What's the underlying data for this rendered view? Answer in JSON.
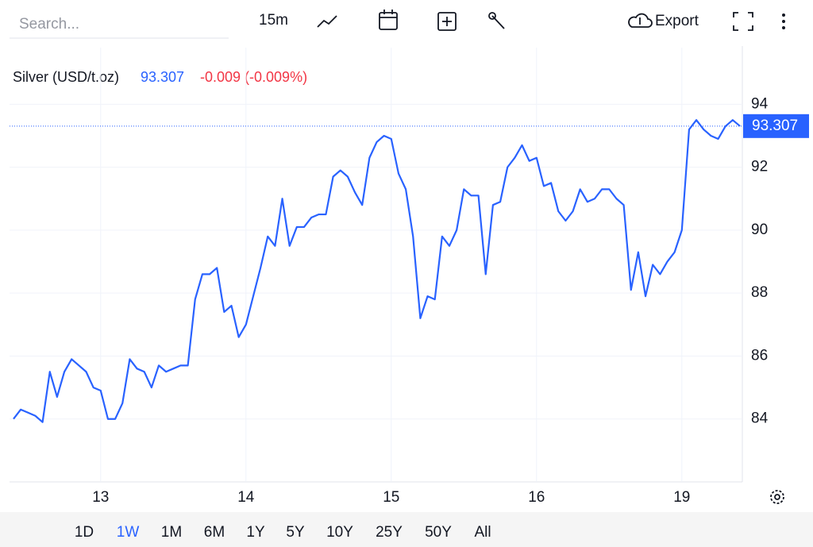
{
  "toolbar": {
    "search_placeholder": "Search...",
    "interval": "15m",
    "export": "Export"
  },
  "chart_data": {
    "type": "line",
    "title": "Silver (USD/t.oz)",
    "last_price": 93.307,
    "change": "-0.009 (-0.009%)",
    "categories": [
      null,
      null,
      null,
      null,
      null,
      null,
      null,
      null,
      null,
      null,
      null,
      null,
      "13",
      null,
      null,
      null,
      null,
      null,
      null,
      null,
      null,
      null,
      null,
      null,
      null,
      null,
      null,
      null,
      null,
      null,
      null,
      null,
      "14",
      null,
      null,
      null,
      null,
      null,
      null,
      null,
      null,
      null,
      null,
      null,
      null,
      null,
      null,
      null,
      null,
      null,
      null,
      null,
      "15",
      null,
      null,
      null,
      null,
      null,
      null,
      null,
      null,
      null,
      null,
      null,
      null,
      null,
      null,
      null,
      null,
      null,
      null,
      null,
      "16",
      null,
      null,
      null,
      null,
      null,
      null,
      null,
      null,
      null,
      null,
      null,
      null,
      null,
      null,
      null,
      null,
      null,
      null,
      null,
      "19",
      null,
      null,
      null,
      null,
      null,
      null,
      null,
      null
    ],
    "series": [
      {
        "name": "Silver (USD/t.oz)",
        "color": "#2962ff",
        "values": [
          84.0,
          84.3,
          84.2,
          84.1,
          83.9,
          85.5,
          84.7,
          85.5,
          85.9,
          85.7,
          85.5,
          85.0,
          84.9,
          84.0,
          84.0,
          84.5,
          85.9,
          85.6,
          85.5,
          85.0,
          85.7,
          85.5,
          85.6,
          85.7,
          85.7,
          87.8,
          88.6,
          88.6,
          88.8,
          87.4,
          87.6,
          86.6,
          87.0,
          87.9,
          88.8,
          89.8,
          89.5,
          91.0,
          89.5,
          90.1,
          90.1,
          90.4,
          90.5,
          90.5,
          91.7,
          91.9,
          91.7,
          91.2,
          90.8,
          92.3,
          92.8,
          93.0,
          92.9,
          91.8,
          91.3,
          89.8,
          87.2,
          87.9,
          87.8,
          89.8,
          89.5,
          90.0,
          91.3,
          91.1,
          91.1,
          88.6,
          90.8,
          90.9,
          92.0,
          92.3,
          92.7,
          92.2,
          92.3,
          91.4,
          91.5,
          90.6,
          90.3,
          90.6,
          91.3,
          90.9,
          91.0,
          91.3,
          91.3,
          91.0,
          90.8,
          88.1,
          89.3,
          87.9,
          88.9,
          88.6,
          89.0,
          89.3,
          90.0,
          93.2,
          93.5,
          93.2,
          93.0,
          92.9,
          93.3,
          93.5,
          93.307
        ]
      }
    ],
    "ylim": [
      82,
      95.8
    ],
    "yticks": [
      84,
      86,
      88,
      90,
      92,
      94
    ],
    "grid": true
  },
  "ranges": [
    "1D",
    "1W",
    "1M",
    "6M",
    "1Y",
    "5Y",
    "10Y",
    "25Y",
    "50Y",
    "All"
  ],
  "active_range": "1W"
}
